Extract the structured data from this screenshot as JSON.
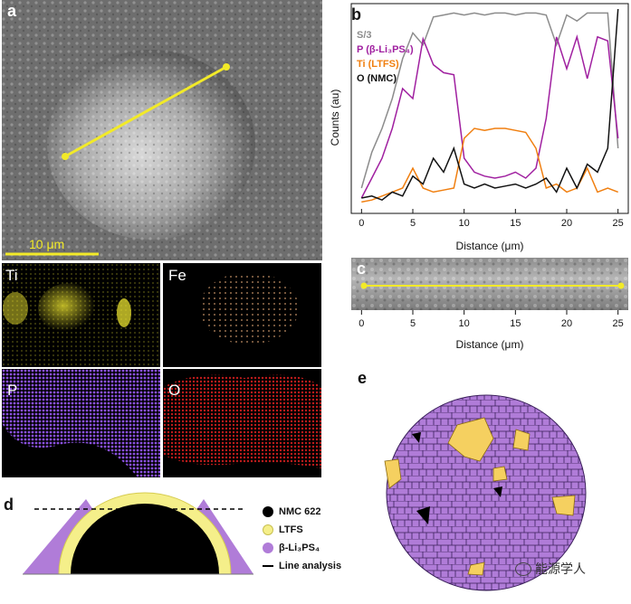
{
  "panels": {
    "a": {
      "letter": "a",
      "scale_bar": "10 μm"
    },
    "b": {
      "letter": "b",
      "ylabel": "Counts (au)",
      "xlabel": "Distance (μm)"
    },
    "c": {
      "letter": "c",
      "xlabel": "Distance (μm)",
      "ticks": [
        "0",
        "5",
        "10",
        "15",
        "20",
        "25"
      ]
    },
    "d": {
      "letter": "d"
    },
    "e": {
      "letter": "e"
    }
  },
  "element_maps": [
    {
      "label": "Ti",
      "color": "#e8e030"
    },
    {
      "label": "Fe",
      "color": "#d8a070"
    },
    {
      "label": "P",
      "color": "#8a50e0"
    },
    {
      "label": "O",
      "color": "#e02020"
    }
  ],
  "legend_d": [
    {
      "label": "NMC 622",
      "color": "#000000"
    },
    {
      "label": "LTFS",
      "color": "#f5ef8a"
    },
    {
      "label": "β-Li₃PS₄",
      "color": "#b07cd8"
    },
    {
      "label": "Line analysis",
      "color": "#000000"
    }
  ],
  "watermark": "能源学人",
  "chart_data": {
    "type": "line",
    "xlabel": "Distance (μm)",
    "ylabel": "Counts (au)",
    "xlim": [
      -1,
      26
    ],
    "xticks": [
      0,
      5,
      10,
      15,
      20,
      25
    ],
    "legend_position": "top-left",
    "x": [
      0,
      1,
      2,
      3,
      4,
      5,
      6,
      7,
      8,
      9,
      10,
      11,
      12,
      13,
      14,
      15,
      16,
      17,
      18,
      19,
      20,
      21,
      22,
      23,
      24,
      25
    ],
    "series": [
      {
        "name": "S/3",
        "color": "#8c8c8c",
        "values": [
          0.1,
          0.28,
          0.4,
          0.55,
          0.75,
          0.88,
          0.82,
          0.96,
          0.97,
          0.98,
          0.97,
          0.98,
          0.97,
          0.98,
          0.98,
          0.97,
          0.98,
          0.98,
          0.97,
          0.82,
          0.97,
          0.94,
          0.98,
          0.98,
          0.98,
          0.3
        ]
      },
      {
        "name": "P (β-Li₃PS₄)",
        "color": "#a020a0",
        "values": [
          0.05,
          0.15,
          0.25,
          0.4,
          0.6,
          0.55,
          0.85,
          0.72,
          0.68,
          0.67,
          0.25,
          0.18,
          0.16,
          0.15,
          0.16,
          0.18,
          0.15,
          0.2,
          0.45,
          0.86,
          0.7,
          0.86,
          0.65,
          0.86,
          0.84,
          0.35
        ]
      },
      {
        "name": "Ti (LTFS)",
        "color": "#f07f10",
        "values": [
          0.03,
          0.04,
          0.06,
          0.08,
          0.1,
          0.2,
          0.1,
          0.08,
          0.09,
          0.1,
          0.35,
          0.4,
          0.39,
          0.4,
          0.4,
          0.39,
          0.38,
          0.3,
          0.1,
          0.12,
          0.08,
          0.1,
          0.2,
          0.08,
          0.1,
          0.08
        ]
      },
      {
        "name": "O (NMC)",
        "color": "#111111",
        "values": [
          0.05,
          0.06,
          0.04,
          0.08,
          0.06,
          0.16,
          0.12,
          0.25,
          0.18,
          0.3,
          0.12,
          0.1,
          0.12,
          0.1,
          0.11,
          0.12,
          0.1,
          0.12,
          0.15,
          0.08,
          0.2,
          0.1,
          0.22,
          0.18,
          0.3,
          1.0
        ]
      }
    ]
  }
}
